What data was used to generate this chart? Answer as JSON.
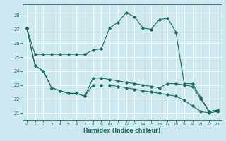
{
  "title": "",
  "xlabel": "Humidex (Indice chaleur)",
  "bg_color": "#cde8f0",
  "grid_color": "#ffffff",
  "line_color": "#1a6b5a",
  "xlim": [
    -0.5,
    23.5
  ],
  "ylim": [
    20.5,
    28.8
  ],
  "yticks": [
    21,
    22,
    23,
    24,
    25,
    26,
    27,
    28
  ],
  "xticks": [
    0,
    1,
    2,
    3,
    4,
    5,
    6,
    7,
    8,
    9,
    10,
    11,
    12,
    13,
    14,
    15,
    16,
    17,
    18,
    19,
    20,
    21,
    22,
    23
  ],
  "series1_x": [
    0,
    1,
    2,
    3,
    4,
    5,
    6,
    7,
    8,
    9,
    10,
    11,
    12,
    13,
    14,
    15,
    16,
    17,
    18,
    19,
    20,
    21,
    22,
    23
  ],
  "series1_y": [
    27.1,
    25.2,
    25.2,
    25.2,
    25.2,
    25.2,
    25.2,
    25.2,
    25.5,
    25.6,
    27.1,
    27.5,
    28.2,
    27.9,
    27.1,
    27.0,
    27.7,
    27.8,
    26.8,
    23.1,
    23.1,
    22.1,
    21.1,
    21.2
  ],
  "series2_x": [
    0,
    1,
    2,
    3,
    4,
    5,
    6,
    7,
    8,
    9,
    10,
    11,
    12,
    13,
    14,
    15,
    16,
    17,
    18,
    19,
    20,
    21,
    22,
    23
  ],
  "series2_y": [
    27.1,
    24.4,
    24.0,
    22.8,
    22.6,
    22.4,
    22.4,
    22.2,
    23.5,
    23.5,
    23.4,
    23.3,
    23.2,
    23.1,
    23.0,
    22.9,
    22.8,
    23.1,
    23.1,
    23.0,
    22.9,
    22.0,
    21.1,
    21.2
  ],
  "series3_x": [
    0,
    1,
    2,
    3,
    4,
    5,
    6,
    7,
    8,
    9,
    10,
    11,
    12,
    13,
    14,
    15,
    16,
    17,
    18,
    19,
    20,
    21,
    22,
    23
  ],
  "series3_y": [
    27.1,
    24.4,
    24.0,
    22.8,
    22.6,
    22.4,
    22.4,
    22.2,
    23.0,
    23.0,
    23.0,
    22.9,
    22.8,
    22.7,
    22.6,
    22.5,
    22.4,
    22.3,
    22.2,
    21.9,
    21.5,
    21.1,
    21.0,
    21.1
  ]
}
